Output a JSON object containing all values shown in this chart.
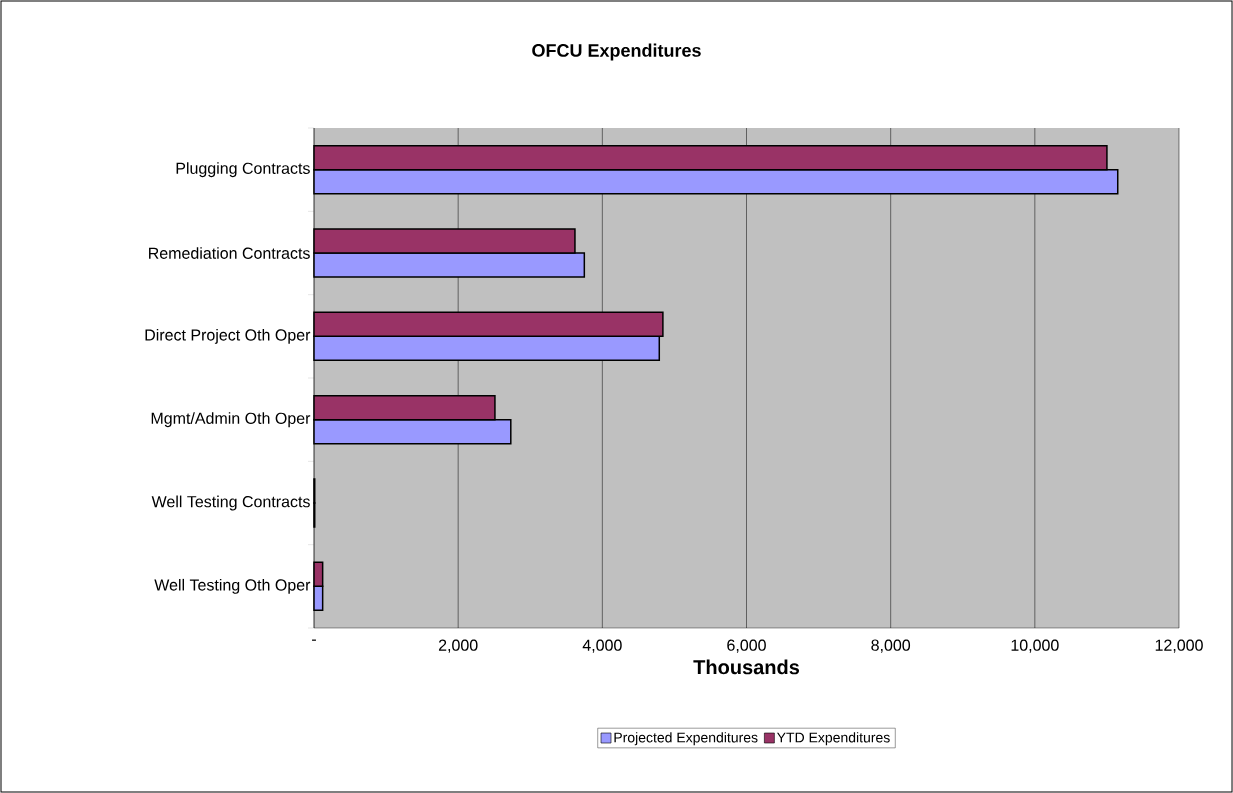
{
  "chart_data": {
    "type": "bar",
    "orientation": "horizontal",
    "title": "OFCU Expenditures",
    "xlabel": "Thousands",
    "categories": [
      "Plugging Contracts",
      "Remediation Contracts",
      "Direct Project Oth Oper",
      "Mgmt/Admin Oth Oper",
      "Well Testing Contracts",
      "Well Testing Oth Oper"
    ],
    "series": [
      {
        "name": "Projected Expenditures",
        "color": "#9999ff",
        "values": [
          11150,
          3750,
          4790,
          2730,
          10,
          120
        ]
      },
      {
        "name": "YTD Expenditures",
        "color": "#993366",
        "values": [
          11000,
          3620,
          4840,
          2510,
          10,
          120
        ]
      }
    ],
    "xlim": [
      0,
      12000
    ],
    "xticks": [
      {
        "value": 0,
        "label": "-"
      },
      {
        "value": 2000,
        "label": "2,000"
      },
      {
        "value": 4000,
        "label": "4,000"
      },
      {
        "value": 6000,
        "label": "6,000"
      },
      {
        "value": 8000,
        "label": "8,000"
      },
      {
        "value": 10000,
        "label": "10,000"
      },
      {
        "value": 12000,
        "label": "12,000"
      }
    ],
    "grid": "x",
    "legend": "bottom"
  }
}
